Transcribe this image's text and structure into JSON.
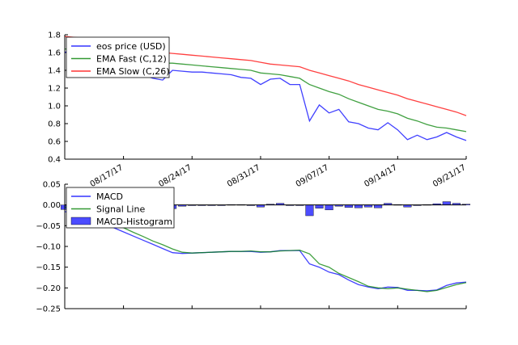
{
  "chart_data": [
    {
      "type": "line",
      "ylim": [
        0.4,
        1.8
      ],
      "yticks": [
        "1.8",
        "1.6",
        "1.4",
        "1.2",
        "1.0",
        "0.8",
        "0.6",
        "0.4"
      ],
      "xticks": [
        "08/17/17",
        "08/24/17",
        "08/31/17",
        "09/07/17",
        "09/14/17",
        "09/21/17"
      ],
      "x": [
        "08/11/17",
        "08/12/17",
        "08/13/17",
        "08/14/17",
        "08/15/17",
        "08/16/17",
        "08/17/17",
        "08/18/17",
        "08/19/17",
        "08/20/17",
        "08/21/17",
        "08/22/17",
        "08/23/17",
        "08/24/17",
        "08/25/17",
        "08/26/17",
        "08/27/17",
        "08/28/17",
        "08/29/17",
        "08/30/17",
        "08/31/17",
        "09/01/17",
        "09/02/17",
        "09/03/17",
        "09/04/17",
        "09/05/17",
        "09/06/17",
        "09/07/17",
        "09/08/17",
        "09/09/17",
        "09/10/17",
        "09/11/17",
        "09/12/17",
        "09/13/17",
        "09/14/17",
        "09/15/17",
        "09/16/17",
        "09/17/17",
        "09/18/17",
        "09/19/17",
        "09/20/17",
        "09/21/17"
      ],
      "legend_position": "upper-left",
      "series": [
        {
          "name": "eos price (USD)",
          "color": "#0000ff",
          "values": [
            1.6,
            1.64,
            1.62,
            1.56,
            1.5,
            1.45,
            1.4,
            1.37,
            1.35,
            1.31,
            1.29,
            1.4,
            1.39,
            1.38,
            1.38,
            1.37,
            1.36,
            1.35,
            1.32,
            1.31,
            1.24,
            1.3,
            1.31,
            1.24,
            1.24,
            0.83,
            1.01,
            0.92,
            0.96,
            0.82,
            0.8,
            0.75,
            0.73,
            0.81,
            0.73,
            0.62,
            0.67,
            0.62,
            0.65,
            0.7,
            0.65,
            0.61
          ]
        },
        {
          "name": "EMA Fast (C,12)",
          "color": "#008000",
          "values": [
            1.64,
            1.64,
            1.63,
            1.61,
            1.59,
            1.57,
            1.55,
            1.53,
            1.51,
            1.5,
            1.48,
            1.48,
            1.47,
            1.46,
            1.45,
            1.44,
            1.43,
            1.42,
            1.41,
            1.4,
            1.37,
            1.36,
            1.35,
            1.33,
            1.31,
            1.24,
            1.2,
            1.16,
            1.13,
            1.08,
            1.04,
            1.0,
            0.96,
            0.94,
            0.91,
            0.86,
            0.83,
            0.79,
            0.76,
            0.75,
            0.73,
            0.71
          ]
        },
        {
          "name": "EMA Slow (C,26)",
          "color": "#ff0000",
          "values": [
            1.78,
            1.77,
            1.76,
            1.74,
            1.72,
            1.7,
            1.68,
            1.66,
            1.64,
            1.62,
            1.6,
            1.59,
            1.58,
            1.57,
            1.56,
            1.55,
            1.54,
            1.53,
            1.52,
            1.51,
            1.49,
            1.47,
            1.46,
            1.45,
            1.44,
            1.4,
            1.37,
            1.34,
            1.31,
            1.28,
            1.24,
            1.21,
            1.18,
            1.15,
            1.12,
            1.08,
            1.05,
            1.02,
            0.99,
            0.96,
            0.93,
            0.89
          ]
        }
      ]
    },
    {
      "type": "line",
      "ylim": [
        -0.25,
        0.05
      ],
      "yticks": [
        "0.05",
        "0.00",
        "−0.05",
        "−0.10",
        "−0.15",
        "−0.20",
        "−0.25"
      ],
      "x": [
        "08/11/17",
        "08/12/17",
        "08/13/17",
        "08/14/17",
        "08/15/17",
        "08/16/17",
        "08/17/17",
        "08/18/17",
        "08/19/17",
        "08/20/17",
        "08/21/17",
        "08/22/17",
        "08/23/17",
        "08/24/17",
        "08/25/17",
        "08/26/17",
        "08/27/17",
        "08/28/17",
        "08/29/17",
        "08/30/17",
        "08/31/17",
        "09/01/17",
        "09/02/17",
        "09/03/17",
        "09/04/17",
        "09/05/17",
        "09/06/17",
        "09/07/17",
        "09/08/17",
        "09/09/17",
        "09/10/17",
        "09/11/17",
        "09/12/17",
        "09/13/17",
        "09/14/17",
        "09/15/17",
        "09/16/17",
        "09/17/17",
        "09/18/17",
        "09/19/17",
        "09/20/17",
        "09/21/17"
      ],
      "legend_position": "upper-left",
      "series": [
        {
          "name": "MACD",
          "color": "#0000ff",
          "values": [
            -0.016,
            -0.02,
            -0.025,
            -0.035,
            -0.045,
            -0.055,
            -0.065,
            -0.075,
            -0.085,
            -0.095,
            -0.105,
            -0.115,
            -0.117,
            -0.116,
            -0.115,
            -0.114,
            -0.113,
            -0.112,
            -0.112,
            -0.112,
            -0.114,
            -0.113,
            -0.11,
            -0.11,
            -0.11,
            -0.142,
            -0.15,
            -0.162,
            -0.168,
            -0.181,
            -0.192,
            -0.198,
            -0.202,
            -0.198,
            -0.199,
            -0.206,
            -0.206,
            -0.207,
            -0.205,
            -0.194,
            -0.188,
            -0.186
          ]
        },
        {
          "name": "Signal Line",
          "color": "#008000",
          "values": [
            -0.005,
            -0.01,
            -0.018,
            -0.027,
            -0.036,
            -0.046,
            -0.055,
            -0.066,
            -0.076,
            -0.087,
            -0.096,
            -0.106,
            -0.114,
            -0.116,
            -0.115,
            -0.114,
            -0.113,
            -0.112,
            -0.112,
            -0.111,
            -0.113,
            -0.113,
            -0.111,
            -0.11,
            -0.109,
            -0.118,
            -0.142,
            -0.15,
            -0.165,
            -0.175,
            -0.185,
            -0.196,
            -0.2,
            -0.202,
            -0.2,
            -0.203,
            -0.206,
            -0.209,
            -0.206,
            -0.199,
            -0.192,
            -0.187
          ]
        },
        {
          "name": "MACD-Histogram",
          "color": "#0000ff",
          "kind": "bar",
          "values": [
            -0.011,
            -0.01,
            -0.007,
            -0.008,
            -0.009,
            -0.009,
            -0.01,
            -0.009,
            -0.009,
            -0.008,
            -0.009,
            -0.009,
            -0.003,
            0.0,
            0.0,
            0.0,
            0.0,
            0.001,
            0.001,
            -0.001,
            -0.005,
            0.002,
            0.004,
            0.0,
            -0.001,
            -0.026,
            -0.008,
            -0.012,
            -0.003,
            -0.006,
            -0.007,
            -0.005,
            -0.007,
            0.004,
            0.001,
            -0.005,
            0.0,
            0.001,
            0.003,
            0.008,
            0.004,
            0.002
          ]
        }
      ]
    }
  ]
}
